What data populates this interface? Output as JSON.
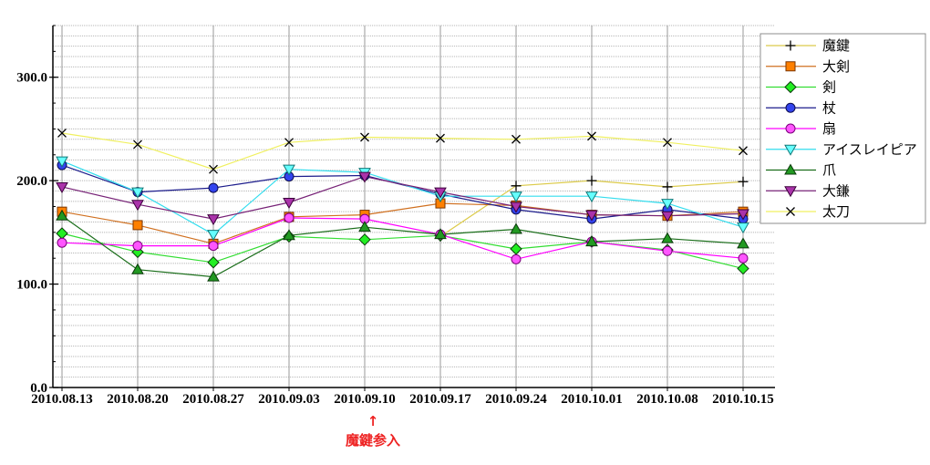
{
  "chart_data": {
    "type": "line",
    "categories": [
      "2010.08.13",
      "2010.08.20",
      "2010.08.27",
      "2010.09.03",
      "2010.09.10",
      "2010.09.17",
      "2010.09.24",
      "2010.10.01",
      "2010.10.08",
      "2010.10.15"
    ],
    "ylim": [
      0,
      350
    ],
    "y_ticks": [
      0,
      100,
      200,
      300
    ],
    "y_tick_labels": [
      "0.0",
      "100.0",
      "200.0",
      "300.0"
    ],
    "grid": true,
    "legend": "right",
    "series": [
      {
        "name": "魔鍵",
        "marker": "plus",
        "color": "#dccb4a",
        "marker_fill": "#000000",
        "marker_stroke": "#000000",
        "values": [
          null,
          null,
          null,
          null,
          null,
          146,
          195,
          200,
          194,
          199
        ]
      },
      {
        "name": "大剣",
        "marker": "square",
        "color": "#d07020",
        "marker_fill": "#ff8000",
        "marker_stroke": "#7a3500",
        "values": [
          170,
          157,
          139,
          165,
          167,
          178,
          176,
          167,
          166,
          170
        ]
      },
      {
        "name": "剣",
        "marker": "diamond",
        "color": "#33dd33",
        "marker_fill": "#22ee22",
        "marker_stroke": "#0a3a0a",
        "values": [
          149,
          131,
          121,
          146,
          143,
          147,
          134,
          141,
          133,
          115
        ]
      },
      {
        "name": "杖",
        "marker": "circle",
        "color": "#1c1c8c",
        "marker_fill": "#3344ee",
        "marker_stroke": "#0c0c50",
        "values": [
          215,
          189,
          193,
          204,
          205,
          187,
          172,
          163,
          172,
          163
        ]
      },
      {
        "name": "扇",
        "marker": "circle",
        "color": "#ff00ff",
        "marker_fill": "#ff55ff",
        "marker_stroke": "#7a007a",
        "values": [
          140,
          137,
          137,
          164,
          163,
          148,
          124,
          141,
          132,
          125
        ]
      },
      {
        "name": "アイスレイピア",
        "marker": "triangle-down",
        "color": "#33ddee",
        "marker_fill": "#66ffff",
        "marker_stroke": "#117777",
        "values": [
          219,
          189,
          148,
          211,
          208,
          185,
          185,
          185,
          178,
          155
        ]
      },
      {
        "name": "爪",
        "marker": "triangle-up",
        "color": "#1a6e1a",
        "marker_fill": "#229922",
        "marker_stroke": "#0a3a0a",
        "values": [
          166,
          114,
          107,
          147,
          155,
          148,
          153,
          141,
          144,
          139
        ]
      },
      {
        "name": "大鎌",
        "marker": "triangle-down",
        "color": "#772277",
        "marker_fill": "#aa33aa",
        "marker_stroke": "#3a003a",
        "values": [
          194,
          177,
          163,
          179,
          204,
          189,
          175,
          167,
          166,
          168
        ]
      },
      {
        "name": "太刀",
        "marker": "cross",
        "color": "#f0f060",
        "marker_fill": "#000000",
        "marker_stroke": "#000000",
        "values": [
          246,
          235,
          211,
          237,
          242,
          241,
          240,
          243,
          237,
          229
        ]
      }
    ],
    "annotation": {
      "arrow": "↑",
      "text": "魔鍵参入",
      "color": "#ee2222"
    }
  }
}
